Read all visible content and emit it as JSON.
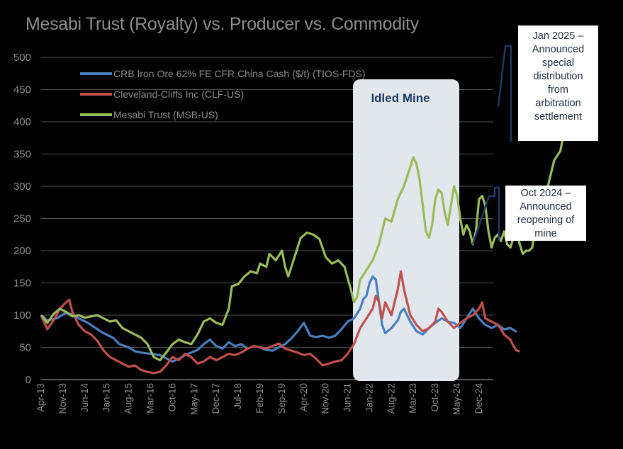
{
  "chart_data": {
    "type": "line",
    "title": "Mesabi Trust (Royalty) vs. Producer vs. Commodity",
    "xlabel": "",
    "ylabel": "",
    "ylim": [
      0,
      500
    ],
    "yticks": [
      0,
      50,
      100,
      150,
      200,
      250,
      300,
      350,
      400,
      450,
      500
    ],
    "xticks": [
      "Apr-13",
      "Nov-13",
      "Jun-14",
      "Jan-15",
      "Aug-15",
      "Mar-16",
      "Oct-16",
      "May-17",
      "Dec-17",
      "Jul-18",
      "Feb-19",
      "Sep-19",
      "Apr-20",
      "Nov-20",
      "Jun-21",
      "Jan-22",
      "Aug-22",
      "Mar-23",
      "Oct-23",
      "May-24",
      "Dec-24"
    ],
    "legend_position": "top-left",
    "grid": "horizontal",
    "series": [
      {
        "name": "CRB Iron Ore 62% FE CFR China Cash ($/t) (TIOS-FDS)",
        "color": "#4a7ebf",
        "points": [
          [
            0,
            100
          ],
          [
            2,
            92
          ],
          [
            5,
            95
          ],
          [
            8,
            104
          ],
          [
            10,
            101
          ],
          [
            12,
            95
          ],
          [
            15,
            88
          ],
          [
            18,
            78
          ],
          [
            20,
            72
          ],
          [
            23,
            65
          ],
          [
            25,
            55
          ],
          [
            28,
            50
          ],
          [
            30,
            44
          ],
          [
            32,
            42
          ],
          [
            35,
            40
          ],
          [
            38,
            38
          ],
          [
            40,
            33
          ],
          [
            42,
            28
          ],
          [
            44,
            32
          ],
          [
            46,
            38
          ],
          [
            48,
            42
          ],
          [
            50,
            46
          ],
          [
            52,
            55
          ],
          [
            54,
            62
          ],
          [
            56,
            52
          ],
          [
            58,
            48
          ],
          [
            60,
            58
          ],
          [
            62,
            52
          ],
          [
            64,
            55
          ],
          [
            66,
            48
          ],
          [
            68,
            52
          ],
          [
            70,
            50
          ],
          [
            72,
            46
          ],
          [
            74,
            45
          ],
          [
            76,
            50
          ],
          [
            78,
            55
          ],
          [
            80,
            64
          ],
          [
            82,
            75
          ],
          [
            84,
            88
          ],
          [
            85,
            78
          ],
          [
            86,
            68
          ],
          [
            88,
            66
          ],
          [
            90,
            68
          ],
          [
            92,
            65
          ],
          [
            94,
            68
          ],
          [
            96,
            78
          ],
          [
            98,
            90
          ],
          [
            100,
            95
          ],
          [
            102,
            110
          ],
          [
            103,
            125
          ],
          [
            104,
            130
          ],
          [
            105,
            150
          ],
          [
            106,
            160
          ],
          [
            107,
            155
          ],
          [
            108,
            120
          ],
          [
            109,
            85
          ],
          [
            110,
            72
          ],
          [
            112,
            80
          ],
          [
            114,
            92
          ],
          [
            115,
            105
          ],
          [
            116,
            110
          ],
          [
            118,
            90
          ],
          [
            120,
            75
          ],
          [
            122,
            70
          ],
          [
            124,
            80
          ],
          [
            126,
            88
          ],
          [
            128,
            95
          ],
          [
            130,
            90
          ],
          [
            132,
            88
          ],
          [
            134,
            80
          ],
          [
            136,
            95
          ],
          [
            138,
            110
          ],
          [
            140,
            95
          ],
          [
            142,
            85
          ],
          [
            144,
            80
          ],
          [
            146,
            85
          ],
          [
            148,
            78
          ],
          [
            150,
            80
          ],
          [
            152,
            74
          ]
        ]
      },
      {
        "name": "Cleveland-Cliffs Inc (CLF-US)",
        "color": "#c0504d",
        "points": [
          [
            0,
            100
          ],
          [
            2,
            78
          ],
          [
            4,
            92
          ],
          [
            6,
            110
          ],
          [
            8,
            120
          ],
          [
            9,
            124
          ],
          [
            10,
            105
          ],
          [
            12,
            85
          ],
          [
            14,
            75
          ],
          [
            16,
            70
          ],
          [
            18,
            60
          ],
          [
            20,
            45
          ],
          [
            22,
            35
          ],
          [
            24,
            30
          ],
          [
            26,
            25
          ],
          [
            28,
            20
          ],
          [
            30,
            22
          ],
          [
            32,
            15
          ],
          [
            34,
            12
          ],
          [
            36,
            10
          ],
          [
            38,
            12
          ],
          [
            40,
            22
          ],
          [
            42,
            35
          ],
          [
            44,
            30
          ],
          [
            46,
            40
          ],
          [
            48,
            35
          ],
          [
            50,
            25
          ],
          [
            52,
            28
          ],
          [
            54,
            35
          ],
          [
            56,
            30
          ],
          [
            58,
            35
          ],
          [
            60,
            40
          ],
          [
            62,
            38
          ],
          [
            64,
            42
          ],
          [
            66,
            48
          ],
          [
            68,
            52
          ],
          [
            70,
            50
          ],
          [
            72,
            48
          ],
          [
            74,
            52
          ],
          [
            76,
            56
          ],
          [
            78,
            48
          ],
          [
            80,
            45
          ],
          [
            82,
            42
          ],
          [
            84,
            38
          ],
          [
            86,
            40
          ],
          [
            88,
            32
          ],
          [
            90,
            22
          ],
          [
            92,
            25
          ],
          [
            94,
            28
          ],
          [
            96,
            30
          ],
          [
            98,
            40
          ],
          [
            100,
            55
          ],
          [
            102,
            80
          ],
          [
            104,
            95
          ],
          [
            106,
            110
          ],
          [
            107,
            130
          ],
          [
            108,
            120
          ],
          [
            109,
            95
          ],
          [
            110,
            120
          ],
          [
            111,
            110
          ],
          [
            112,
            100
          ],
          [
            113,
            120
          ],
          [
            114,
            140
          ],
          [
            115,
            168
          ],
          [
            116,
            140
          ],
          [
            117,
            120
          ],
          [
            118,
            100
          ],
          [
            120,
            85
          ],
          [
            122,
            75
          ],
          [
            124,
            80
          ],
          [
            126,
            90
          ],
          [
            127,
            110
          ],
          [
            128,
            105
          ],
          [
            130,
            90
          ],
          [
            132,
            80
          ],
          [
            134,
            88
          ],
          [
            136,
            95
          ],
          [
            138,
            100
          ],
          [
            140,
            110
          ],
          [
            141,
            120
          ],
          [
            142,
            95
          ],
          [
            144,
            90
          ],
          [
            146,
            85
          ],
          [
            147,
            78
          ],
          [
            148,
            70
          ],
          [
            150,
            62
          ],
          [
            151,
            52
          ],
          [
            152,
            45
          ],
          [
            153,
            44
          ]
        ]
      },
      {
        "name": "Mesabi Trust (MSB-US)",
        "color": "#9bbb59",
        "points": [
          [
            0,
            100
          ],
          [
            2,
            88
          ],
          [
            4,
            102
          ],
          [
            6,
            110
          ],
          [
            8,
            105
          ],
          [
            10,
            98
          ],
          [
            12,
            100
          ],
          [
            14,
            96
          ],
          [
            16,
            98
          ],
          [
            18,
            100
          ],
          [
            20,
            95
          ],
          [
            22,
            90
          ],
          [
            24,
            92
          ],
          [
            26,
            80
          ],
          [
            28,
            75
          ],
          [
            30,
            70
          ],
          [
            32,
            65
          ],
          [
            34,
            55
          ],
          [
            36,
            35
          ],
          [
            38,
            30
          ],
          [
            40,
            42
          ],
          [
            42,
            55
          ],
          [
            44,
            62
          ],
          [
            46,
            58
          ],
          [
            48,
            55
          ],
          [
            50,
            70
          ],
          [
            52,
            90
          ],
          [
            54,
            95
          ],
          [
            56,
            88
          ],
          [
            58,
            85
          ],
          [
            60,
            110
          ],
          [
            61,
            145
          ],
          [
            63,
            148
          ],
          [
            65,
            160
          ],
          [
            67,
            168
          ],
          [
            69,
            165
          ],
          [
            70,
            180
          ],
          [
            72,
            175
          ],
          [
            73,
            195
          ],
          [
            75,
            185
          ],
          [
            77,
            200
          ],
          [
            78,
            175
          ],
          [
            79,
            160
          ],
          [
            81,
            190
          ],
          [
            83,
            220
          ],
          [
            85,
            228
          ],
          [
            87,
            225
          ],
          [
            89,
            218
          ],
          [
            91,
            190
          ],
          [
            93,
            180
          ],
          [
            95,
            185
          ],
          [
            97,
            175
          ],
          [
            99,
            140
          ],
          [
            100,
            120
          ],
          [
            101,
            128
          ],
          [
            102,
            155
          ],
          [
            104,
            170
          ],
          [
            106,
            185
          ],
          [
            108,
            210
          ],
          [
            110,
            250
          ],
          [
            112,
            245
          ],
          [
            114,
            280
          ],
          [
            116,
            300
          ],
          [
            118,
            330
          ],
          [
            119,
            345
          ],
          [
            120,
            335
          ],
          [
            121,
            310
          ],
          [
            122,
            270
          ],
          [
            123,
            230
          ],
          [
            124,
            220
          ],
          [
            125,
            240
          ],
          [
            126,
            280
          ],
          [
            127,
            295
          ],
          [
            128,
            290
          ],
          [
            129,
            260
          ],
          [
            130,
            240
          ],
          [
            131,
            270
          ],
          [
            132,
            300
          ],
          [
            133,
            285
          ],
          [
            134,
            250
          ],
          [
            135,
            225
          ],
          [
            136,
            240
          ],
          [
            137,
            230
          ],
          [
            138,
            210
          ],
          [
            139,
            230
          ],
          [
            140,
            280
          ],
          [
            141,
            285
          ],
          [
            142,
            270
          ],
          [
            143,
            230
          ],
          [
            144,
            205
          ],
          [
            145,
            220
          ],
          [
            146,
            225
          ],
          [
            147,
            215
          ],
          [
            148,
            230
          ],
          [
            149,
            210
          ],
          [
            150,
            205
          ],
          [
            151,
            220
          ],
          [
            152,
            230
          ],
          [
            153,
            210
          ],
          [
            154,
            195
          ],
          [
            155,
            200
          ],
          [
            156,
            200
          ],
          [
            157,
            205
          ],
          [
            158,
            240
          ],
          [
            160,
            270
          ],
          [
            162,
            300
          ],
          [
            164,
            340
          ],
          [
            166,
            355
          ],
          [
            167,
            380
          ],
          [
            168,
            405
          ],
          [
            169,
            420
          ],
          [
            170,
            432
          ]
        ]
      }
    ],
    "annotations": [
      {
        "id": "idled",
        "text": "Idled Mine"
      },
      {
        "id": "jan2025",
        "text": "Jan 2025 –\nAnnounced\nspecial\ndistribution\nfrom\narbitration\nsettlement"
      },
      {
        "id": "oct2024",
        "text": "Oct 2024 –\nAnnounced\nreopening of\nmine"
      }
    ]
  }
}
